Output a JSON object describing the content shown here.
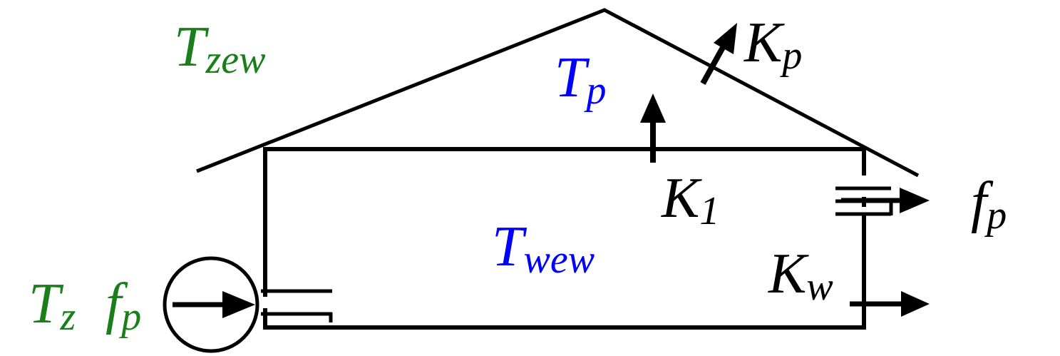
{
  "colors": {
    "outdoor": "#1a7f1a",
    "indoor": "#0000ff",
    "coefficient": "#000000",
    "line": "#000000"
  },
  "labels": {
    "t_zew": {
      "main": "T",
      "sub": "zew"
    },
    "t_p": {
      "main": "T",
      "sub": "p"
    },
    "k_p": {
      "main": "K",
      "sub": "p"
    },
    "k_1": {
      "main": "K",
      "sub": "1"
    },
    "f_p_out": {
      "main": "f",
      "sub": "p"
    },
    "t_wew": {
      "main": "T",
      "sub": "wew"
    },
    "k_w": {
      "main": "K",
      "sub": "w"
    },
    "t_z": {
      "main": "T",
      "sub": "z"
    },
    "f_p_in": {
      "main": "f",
      "sub": "p"
    }
  }
}
